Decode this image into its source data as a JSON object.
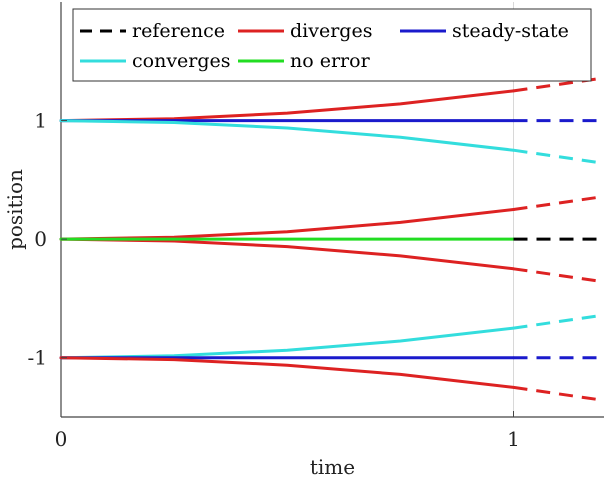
{
  "chart_data": {
    "type": "line",
    "xlabel": "time",
    "ylabel": "position",
    "xlim": [
      0,
      1.2
    ],
    "ylim": [
      -1.5,
      2.0
    ],
    "x_ticks": [
      {
        "value": 0,
        "label": "0"
      },
      {
        "value": 1,
        "label": "1"
      }
    ],
    "y_ticks": [
      {
        "value": 1,
        "label": "1"
      },
      {
        "value": 0,
        "label": "0"
      },
      {
        "value": -1,
        "label": "-1"
      }
    ],
    "divider_x": 1,
    "legend": {
      "placement": "top",
      "entries": [
        {
          "label": "reference",
          "color": "#000000",
          "style": "dashed"
        },
        {
          "label": "diverges",
          "color": "#dd2222",
          "style": "solid"
        },
        {
          "label": "steady-state",
          "color": "#1a1acc",
          "style": "solid"
        },
        {
          "label": "converges",
          "color": "#33dddd",
          "style": "solid"
        },
        {
          "label": "no error",
          "color": "#22dd22",
          "style": "solid"
        }
      ]
    },
    "series": [
      {
        "color": "#dd2222",
        "solid": [
          [
            0,
            1
          ],
          [
            0.25,
            1.016
          ],
          [
            0.5,
            1.063
          ],
          [
            0.75,
            1.141
          ],
          [
            1,
            1.25
          ]
        ],
        "dashed": [
          [
            1,
            1.25
          ],
          [
            1.2,
            1.36
          ]
        ]
      },
      {
        "color": "#1a1acc",
        "solid": [
          [
            0,
            1
          ],
          [
            1,
            1
          ]
        ],
        "dashed": [
          [
            1,
            1
          ],
          [
            1.2,
            1
          ]
        ]
      },
      {
        "color": "#33dddd",
        "solid": [
          [
            0,
            1
          ],
          [
            0.25,
            0.984
          ],
          [
            0.5,
            0.937
          ],
          [
            0.75,
            0.859
          ],
          [
            1,
            0.75
          ]
        ],
        "dashed": [
          [
            1,
            0.75
          ],
          [
            1.2,
            0.64
          ]
        ]
      },
      {
        "color": "#dd2222",
        "solid": [
          [
            0,
            0
          ],
          [
            0.25,
            0.016
          ],
          [
            0.5,
            0.063
          ],
          [
            0.75,
            0.141
          ],
          [
            1,
            0.25
          ]
        ],
        "dashed": [
          [
            1,
            0.25
          ],
          [
            1.2,
            0.36
          ]
        ]
      },
      {
        "color": "#dd2222",
        "solid": [
          [
            0,
            0
          ],
          [
            0.25,
            -0.016
          ],
          [
            0.5,
            -0.063
          ],
          [
            0.75,
            -0.141
          ],
          [
            1,
            -0.25
          ]
        ],
        "dashed": [
          [
            1,
            -0.25
          ],
          [
            1.2,
            -0.36
          ]
        ]
      },
      {
        "color": "#22dd22",
        "solid": [
          [
            0,
            0
          ],
          [
            1,
            0
          ]
        ],
        "dashed": []
      },
      {
        "color": "#000000",
        "solid": [],
        "dashed": [
          [
            1,
            0
          ],
          [
            1.2,
            0
          ]
        ]
      },
      {
        "color": "#33dddd",
        "solid": [
          [
            0,
            -1
          ],
          [
            0.25,
            -0.984
          ],
          [
            0.5,
            -0.937
          ],
          [
            0.75,
            -0.859
          ],
          [
            1,
            -0.75
          ]
        ],
        "dashed": [
          [
            1,
            -0.75
          ],
          [
            1.2,
            -0.64
          ]
        ]
      },
      {
        "color": "#1a1acc",
        "solid": [
          [
            0,
            -1
          ],
          [
            1,
            -1
          ]
        ],
        "dashed": [
          [
            1,
            -1
          ],
          [
            1.2,
            -1
          ]
        ]
      },
      {
        "color": "#dd2222",
        "solid": [
          [
            0,
            -1
          ],
          [
            0.25,
            -1.016
          ],
          [
            0.5,
            -1.063
          ],
          [
            0.75,
            -1.141
          ],
          [
            1,
            -1.25
          ]
        ],
        "dashed": [
          [
            1,
            -1.25
          ],
          [
            1.2,
            -1.36
          ]
        ]
      }
    ]
  }
}
